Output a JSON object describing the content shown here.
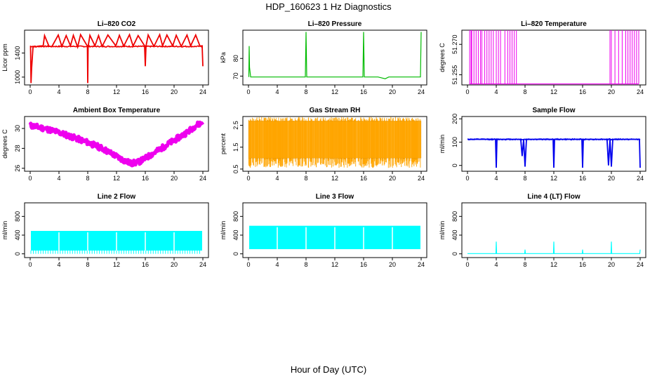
{
  "figure": {
    "title": "HDP_160623  1 Hz Diagnostics",
    "xlabel": "Hour of Day (UTC)"
  },
  "chart_data": [
    {
      "id": "co2",
      "type": "line",
      "title": "Li–820 CO2",
      "ylabel": "Licor ppm",
      "color": "#ee0000",
      "xlim": [
        0,
        24
      ],
      "ylim": [
        870,
        1780
      ],
      "xticks": [
        0,
        4,
        8,
        12,
        16,
        20,
        24
      ],
      "yticks": [
        1000,
        1400
      ],
      "yticklabels": [
        "1000",
        "1400"
      ],
      "baseline": 1510,
      "series": [
        {
          "x": [
            0.05,
            0.12,
            0.2,
            0.4,
            0.8,
            1.2,
            1.8,
            2.0,
            2.6,
            3.0,
            3.9,
            4.4,
            5.0,
            5.6,
            6.0,
            6.6,
            7.0,
            7.95,
            8.0,
            8.05,
            8.3,
            9.0,
            9.5,
            10.0,
            10.8,
            11.9,
            12.4,
            13.0,
            13.8,
            14.3,
            15.0,
            15.9,
            16.0,
            16.1,
            16.4,
            17.2,
            18.0,
            18.4,
            19.0,
            19.8,
            20.3,
            21.0,
            21.8,
            22.3,
            23.0,
            23.6,
            23.9,
            24.0
          ],
          "y": [
            1520,
            900,
            1140,
            1510,
            1500,
            1515,
            1520,
            1690,
            1515,
            1505,
            1700,
            1510,
            1690,
            1520,
            1695,
            1500,
            1705,
            1515,
            900,
            1505,
            1695,
            1520,
            1690,
            1510,
            1700,
            1520,
            1695,
            1515,
            1705,
            1515,
            1690,
            1520,
            1180,
            1515,
            1700,
            1510,
            1705,
            1520,
            1700,
            1520,
            1695,
            1510,
            1700,
            1520,
            1700,
            1515,
            1520,
            1180
          ]
        }
      ]
    },
    {
      "id": "pressure",
      "type": "line",
      "title": "Li–820 Pressure",
      "ylabel": "kPa",
      "color": "#00bb00",
      "xlim": [
        0,
        24
      ],
      "ylim": [
        65,
        96
      ],
      "xticks": [
        0,
        4,
        8,
        12,
        16,
        20,
        24
      ],
      "yticks": [
        70,
        80
      ],
      "yticklabels": [
        "70",
        "80"
      ],
      "baseline": 69.5,
      "series": [
        {
          "x": [
            0.05,
            0.1,
            0.15,
            0.3,
            2.0,
            4.0,
            6.0,
            7.9,
            8.0,
            8.1,
            10.0,
            12.0,
            14.0,
            15.9,
            16.0,
            16.1,
            18.0,
            19.0,
            19.5,
            20.0,
            22.0,
            23.9,
            24.0
          ],
          "y": [
            69.5,
            87,
            75,
            69.5,
            69.5,
            69.5,
            69.5,
            69.5,
            95,
            69.5,
            69.5,
            69.5,
            69.5,
            69.5,
            95,
            69.5,
            69.5,
            68.5,
            69.5,
            69.5,
            69.5,
            69.5,
            95
          ]
        }
      ]
    },
    {
      "id": "licor_temp",
      "type": "line",
      "title": "Li–820 Temperature",
      "ylabel": "degrees C",
      "color": "#ee00ee",
      "xlim": [
        0,
        24
      ],
      "ylim": [
        51.25,
        51.277
      ],
      "xticks": [
        0,
        4,
        8,
        12,
        16,
        20,
        24
      ],
      "yticks": [
        51.255,
        51.27
      ],
      "yticklabels": [
        "51.255",
        "51.270"
      ],
      "baseline": 51.2505,
      "spikes": [
        0.3,
        0.5,
        0.6,
        0.9,
        1.2,
        1.5,
        1.8,
        2.0,
        2.4,
        2.7,
        3.0,
        3.3,
        3.6,
        4.0,
        4.3,
        4.6,
        5.2,
        5.6,
        5.9,
        6.2,
        6.5,
        6.8,
        19.8,
        20.0,
        20.5,
        21.0,
        21.5,
        22.0,
        22.3,
        22.6,
        22.9,
        23.2,
        23.5,
        23.8
      ]
    },
    {
      "id": "ambient_temp",
      "type": "band",
      "title": "Ambient Box Temperature",
      "ylabel": "degrees C",
      "color": "#ee00ee",
      "xlim": [
        0,
        24
      ],
      "ylim": [
        25.7,
        31.2
      ],
      "xticks": [
        0,
        4,
        8,
        12,
        16,
        20,
        24
      ],
      "yticks": [
        26,
        28,
        30
      ],
      "yticklabels": [
        "26",
        "28",
        "30"
      ],
      "series": [
        {
          "x": [
            0,
            2,
            4,
            6,
            8,
            10,
            12,
            13,
            14,
            15,
            16,
            18,
            20,
            22,
            23,
            24
          ],
          "y": [
            30.3,
            30.0,
            29.6,
            29.1,
            28.6,
            28.0,
            27.2,
            26.8,
            26.5,
            26.6,
            27.0,
            27.9,
            28.8,
            29.7,
            30.3,
            30.6
          ]
        }
      ]
    },
    {
      "id": "rh",
      "type": "noise",
      "title": "Gas Stream RH",
      "ylabel": "percent",
      "color": "#ffa500",
      "xlim": [
        0,
        24
      ],
      "ylim": [
        0.4,
        2.9
      ],
      "xticks": [
        0,
        4,
        8,
        12,
        16,
        20,
        24
      ],
      "yticks": [
        0.5,
        1.5,
        2.5
      ],
      "yticklabels": [
        "0.5",
        "1.5",
        "2.5"
      ],
      "top": 2.7,
      "bottom": 1.0,
      "minimum": 0.55
    },
    {
      "id": "sample_flow",
      "type": "line",
      "title": "Sample Flow",
      "ylabel": "ml/min",
      "color": "#0000ee",
      "xlim": [
        0,
        24
      ],
      "ylim": [
        -25,
        210
      ],
      "xticks": [
        0,
        4,
        8,
        12,
        16,
        20,
        24
      ],
      "yticks": [
        0,
        100,
        200
      ],
      "yticklabels": [
        "0",
        "100",
        "200"
      ],
      "baseline": 112,
      "series": [
        {
          "x": [
            0.0,
            3.9,
            4.0,
            4.1,
            7.4,
            7.6,
            7.8,
            8.0,
            8.2,
            11.9,
            12.0,
            12.1,
            15.9,
            16.0,
            16.1,
            19.4,
            19.6,
            19.8,
            20.0,
            20.2,
            23.9,
            24.0
          ],
          "y": [
            112,
            112,
            -10,
            112,
            112,
            40,
            112,
            -5,
            112,
            112,
            -10,
            112,
            112,
            -10,
            112,
            112,
            0,
            112,
            -5,
            112,
            112,
            -10
          ]
        }
      ]
    },
    {
      "id": "line2",
      "type": "block",
      "title": "Line 2 Flow",
      "ylabel": "ml/min",
      "color": "#00ffff",
      "xlim": [
        0,
        24
      ],
      "ylim": [
        -80,
        1090
      ],
      "xticks": [
        0,
        4,
        8,
        12,
        16,
        20,
        24
      ],
      "yticks": [
        0,
        400,
        800
      ],
      "yticklabels": [
        "0",
        "400",
        "800"
      ],
      "top": 490,
      "bottom": 70,
      "xstart": 0.1,
      "xend": 23.9,
      "gaps": [
        4,
        8,
        12,
        16,
        20
      ]
    },
    {
      "id": "line3",
      "type": "block",
      "title": "Line 3 Flow",
      "ylabel": "ml/min",
      "color": "#00ffff",
      "xlim": [
        0,
        24
      ],
      "ylim": [
        -80,
        1090
      ],
      "xticks": [
        0,
        4,
        8,
        12,
        16,
        20,
        24
      ],
      "yticks": [
        0,
        400,
        800
      ],
      "yticklabels": [
        "0",
        "400",
        "800"
      ],
      "top": 600,
      "bottom": 100,
      "xstart": 0.1,
      "xend": 23.9,
      "gaps": [
        4,
        8,
        12,
        16,
        20
      ]
    },
    {
      "id": "line4",
      "type": "line",
      "title": "Line 4 (LT) Flow",
      "ylabel": "ml/min",
      "color": "#00ffff",
      "xlim": [
        0,
        24
      ],
      "ylim": [
        -80,
        1090
      ],
      "xticks": [
        0,
        4,
        8,
        12,
        16,
        20,
        24
      ],
      "yticks": [
        0,
        400,
        800
      ],
      "yticklabels": [
        "0",
        "400",
        "800"
      ],
      "baseline": 5,
      "series": [
        {
          "x": [
            0.0,
            3.95,
            4.0,
            4.05,
            7.95,
            8.0,
            8.05,
            11.95,
            12.0,
            12.05,
            15.95,
            16.0,
            16.05,
            19.95,
            20.0,
            20.05,
            23.95,
            24.0
          ],
          "y": [
            5,
            5,
            260,
            5,
            5,
            90,
            5,
            5,
            260,
            5,
            5,
            90,
            5,
            5,
            260,
            5,
            5,
            90
          ]
        }
      ]
    }
  ]
}
